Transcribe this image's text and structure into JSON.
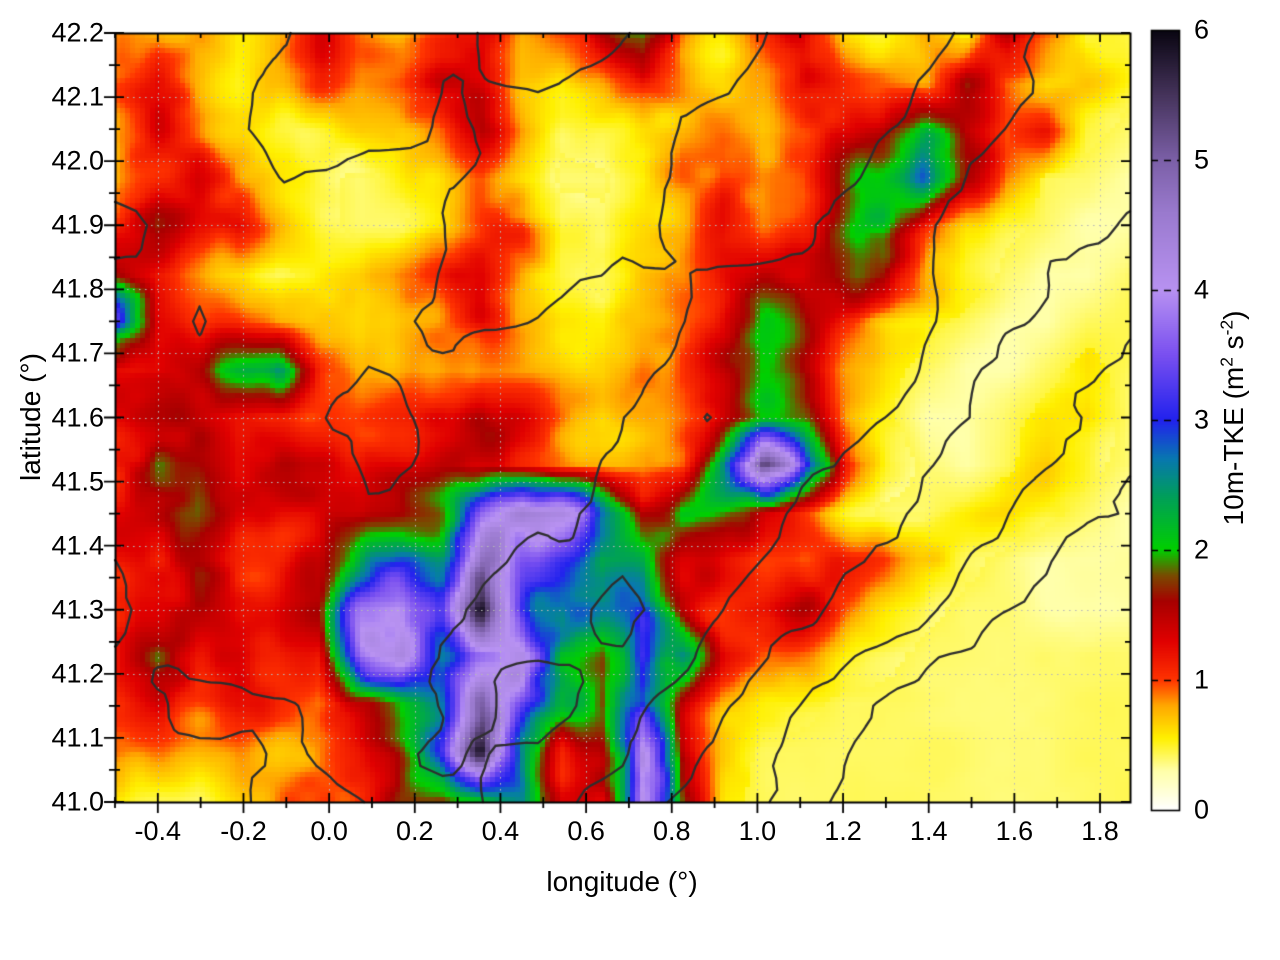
{
  "figure": {
    "background": "#ffffff",
    "border_color": "#000000",
    "grid_color": "#b8b8b8",
    "contour_color": "#2e2e2e"
  },
  "axes": {
    "x_label": "longitude (°)",
    "y_label": "latitude (°)",
    "x_tick_labels": [
      "-0.4",
      "-0.2",
      "0.0",
      "0.2",
      "0.4",
      "0.6",
      "0.8",
      "1.0",
      "1.2",
      "1.4",
      "1.6",
      "1.8"
    ],
    "x_tick_values": [
      -0.4,
      -0.2,
      0.0,
      0.2,
      0.4,
      0.6,
      0.8,
      1.0,
      1.2,
      1.4,
      1.6,
      1.8
    ],
    "y_tick_labels": [
      "41.0",
      "41.1",
      "41.2",
      "41.3",
      "41.4",
      "41.5",
      "41.6",
      "41.7",
      "41.8",
      "41.9",
      "42.0",
      "42.1",
      "42.2"
    ],
    "y_tick_values": [
      41.0,
      41.1,
      41.2,
      41.3,
      41.4,
      41.5,
      41.6,
      41.7,
      41.8,
      41.9,
      42.0,
      42.1,
      42.2
    ],
    "x_minor_step": 0.1,
    "y_minor_step": 0.05
  },
  "colorbar": {
    "tick_labels": [
      "0",
      "1",
      "2",
      "3",
      "4",
      "5",
      "6"
    ],
    "tick_values": [
      0,
      1,
      2,
      3,
      4,
      5,
      6
    ],
    "label_parts": {
      "p1": "10m-TKE (m",
      "sup1": "2",
      "p2": " s",
      "sup2": "-2",
      "p3": ")"
    }
  },
  "chart_data": {
    "type": "heatmap",
    "title": "",
    "xlabel": "longitude (°)",
    "ylabel": "latitude (°)",
    "x_range": [
      -0.5,
      1.87
    ],
    "y_range": [
      41.0,
      42.2
    ],
    "grid": true,
    "colorbar_label": "10m-TKE (m2 s-2)",
    "colorbar_range": [
      0,
      6
    ],
    "palette_stops": [
      [
        0.0,
        "#ffffff"
      ],
      [
        0.3,
        "#ffffa8"
      ],
      [
        0.55,
        "#fff000"
      ],
      [
        0.8,
        "#ffa800"
      ],
      [
        1.0,
        "#ff3300"
      ],
      [
        1.3,
        "#e00000"
      ],
      [
        1.6,
        "#a80000"
      ],
      [
        1.8,
        "#7a4a00"
      ],
      [
        2.0,
        "#00d000"
      ],
      [
        2.4,
        "#00a058"
      ],
      [
        2.7,
        "#0878b0"
      ],
      [
        3.0,
        "#2222ee"
      ],
      [
        3.5,
        "#7a50f0"
      ],
      [
        4.0,
        "#b892f2"
      ],
      [
        4.6,
        "#9a7ace"
      ],
      [
        5.0,
        "#7c60a8"
      ],
      [
        5.5,
        "#46345c"
      ],
      [
        6.0,
        "#0a0612"
      ]
    ],
    "tke_grid": {
      "comment": "10m TKE values x10 (m2/s2), 17 rows from lat 42.2 down to 41.0, 26 cols from lon -0.5 to 1.87; bottom-right uniform ~0.4 is the sea",
      "ncols": 26,
      "nrows": 17,
      "values": [
        [
          9,
          12,
          8,
          6,
          7,
          10,
          7,
          6,
          9,
          13,
          8,
          10,
          16,
          22,
          10,
          7,
          12,
          16,
          9,
          7,
          10,
          6,
          20,
          14,
          6,
          5
        ],
        [
          11,
          14,
          9,
          6,
          8,
          11,
          8,
          10,
          15,
          12,
          7,
          6,
          9,
          12,
          9,
          8,
          10,
          14,
          12,
          10,
          8,
          18,
          9,
          6,
          7,
          5
        ],
        [
          9,
          14,
          13,
          8,
          6,
          6,
          7,
          6,
          8,
          12,
          8,
          5,
          6,
          8,
          10,
          9,
          7,
          10,
          13,
          18,
          26,
          14,
          8,
          10,
          5,
          4
        ],
        [
          8,
          13,
          15,
          10,
          7,
          5,
          4,
          5,
          6,
          8,
          6,
          4,
          4,
          6,
          10,
          12,
          8,
          9,
          16,
          24,
          32,
          16,
          7,
          4,
          4,
          3
        ],
        [
          10,
          15,
          12,
          13,
          8,
          5,
          4,
          4,
          6,
          10,
          13,
          6,
          5,
          7,
          9,
          12,
          9,
          12,
          18,
          26,
          14,
          7,
          5,
          4,
          3,
          3
        ],
        [
          13,
          10,
          8,
          6,
          4,
          5,
          6,
          9,
          11,
          13,
          8,
          5,
          4,
          7,
          10,
          12,
          14,
          12,
          16,
          22,
          10,
          6,
          4,
          3,
          3,
          4
        ],
        [
          28,
          12,
          9,
          10,
          8,
          7,
          6,
          8,
          10,
          13,
          9,
          6,
          5,
          8,
          10,
          12,
          16,
          14,
          9,
          6,
          5,
          4,
          3,
          3,
          4,
          4
        ],
        [
          13,
          11,
          14,
          20,
          24,
          11,
          7,
          8,
          9,
          11,
          8,
          6,
          6,
          9,
          11,
          14,
          16,
          12,
          7,
          5,
          4,
          3,
          3,
          4,
          5,
          4
        ],
        [
          14,
          17,
          15,
          11,
          10,
          9,
          9,
          11,
          14,
          16,
          12,
          8,
          7,
          9,
          12,
          16,
          18,
          14,
          8,
          5,
          3,
          3,
          4,
          5,
          6,
          4
        ],
        [
          15,
          21,
          17,
          12,
          13,
          12,
          10,
          12,
          15,
          14,
          11,
          9,
          8,
          10,
          14,
          25,
          45,
          28,
          12,
          6,
          4,
          3,
          4,
          6,
          5,
          4
        ],
        [
          14,
          16,
          20,
          14,
          12,
          11,
          11,
          14,
          20,
          38,
          46,
          42,
          30,
          18,
          25,
          20,
          12,
          8,
          5,
          4,
          4,
          5,
          6,
          5,
          4,
          3
        ],
        [
          13,
          15,
          18,
          13,
          11,
          12,
          20,
          26,
          28,
          48,
          40,
          32,
          22,
          24,
          16,
          12,
          9,
          8,
          11,
          12,
          8,
          5,
          4,
          3,
          3,
          3
        ],
        [
          11,
          15,
          17,
          14,
          12,
          13,
          30,
          36,
          30,
          55,
          34,
          26,
          28,
          30,
          15,
          11,
          12,
          13,
          10,
          7,
          5,
          4,
          4,
          3,
          3,
          3
        ],
        [
          10,
          16,
          13,
          15,
          11,
          10,
          32,
          34,
          22,
          28,
          42,
          22,
          18,
          34,
          28,
          12,
          9,
          7,
          6,
          5,
          4,
          4,
          4,
          4,
          4,
          4
        ],
        [
          9,
          12,
          10,
          13,
          10,
          8,
          13,
          18,
          22,
          38,
          30,
          20,
          16,
          30,
          16,
          8,
          6,
          5,
          4,
          4,
          4,
          4,
          4,
          4,
          4,
          4
        ],
        [
          10,
          8,
          7,
          8,
          7,
          9,
          11,
          16,
          26,
          48,
          26,
          14,
          20,
          38,
          12,
          6,
          4,
          4,
          4,
          4,
          4,
          4,
          4,
          4,
          4,
          4
        ],
        [
          6,
          5,
          4,
          6,
          8,
          10,
          13,
          16,
          14,
          18,
          26,
          14,
          16,
          36,
          14,
          5,
          4,
          4,
          4,
          4,
          4,
          4,
          4,
          4,
          4,
          4
        ]
      ]
    },
    "contours": {
      "comment": "overlaid black terrain contour lines; elevation proxy grid, 9 rows lat 42.2->41.0, 13 cols lon -0.5->1.87",
      "levels": [
        18,
        24,
        32,
        42,
        52
      ],
      "elevation_grid": [
        [
          55,
          60,
          52,
          45,
          50,
          58,
          52,
          45,
          55,
          60,
          50,
          42,
          38
        ],
        [
          60,
          55,
          48,
          52,
          55,
          50,
          45,
          52,
          60,
          52,
          44,
          40,
          35
        ],
        [
          52,
          58,
          55,
          60,
          52,
          45,
          50,
          58,
          52,
          45,
          40,
          34,
          30
        ],
        [
          58,
          52,
          60,
          55,
          48,
          52,
          58,
          50,
          44,
          50,
          36,
          30,
          26
        ],
        [
          62,
          58,
          52,
          48,
          55,
          60,
          52,
          44,
          52,
          42,
          32,
          26,
          22
        ],
        [
          55,
          62,
          58,
          52,
          60,
          55,
          48,
          54,
          44,
          34,
          26,
          22,
          18
        ],
        [
          50,
          55,
          60,
          56,
          52,
          48,
          56,
          46,
          36,
          28,
          22,
          16,
          12
        ],
        [
          56,
          50,
          52,
          58,
          48,
          54,
          44,
          34,
          26,
          20,
          14,
          10,
          8
        ],
        [
          52,
          56,
          48,
          52,
          55,
          46,
          38,
          28,
          20,
          14,
          10,
          7,
          6
        ]
      ]
    }
  }
}
